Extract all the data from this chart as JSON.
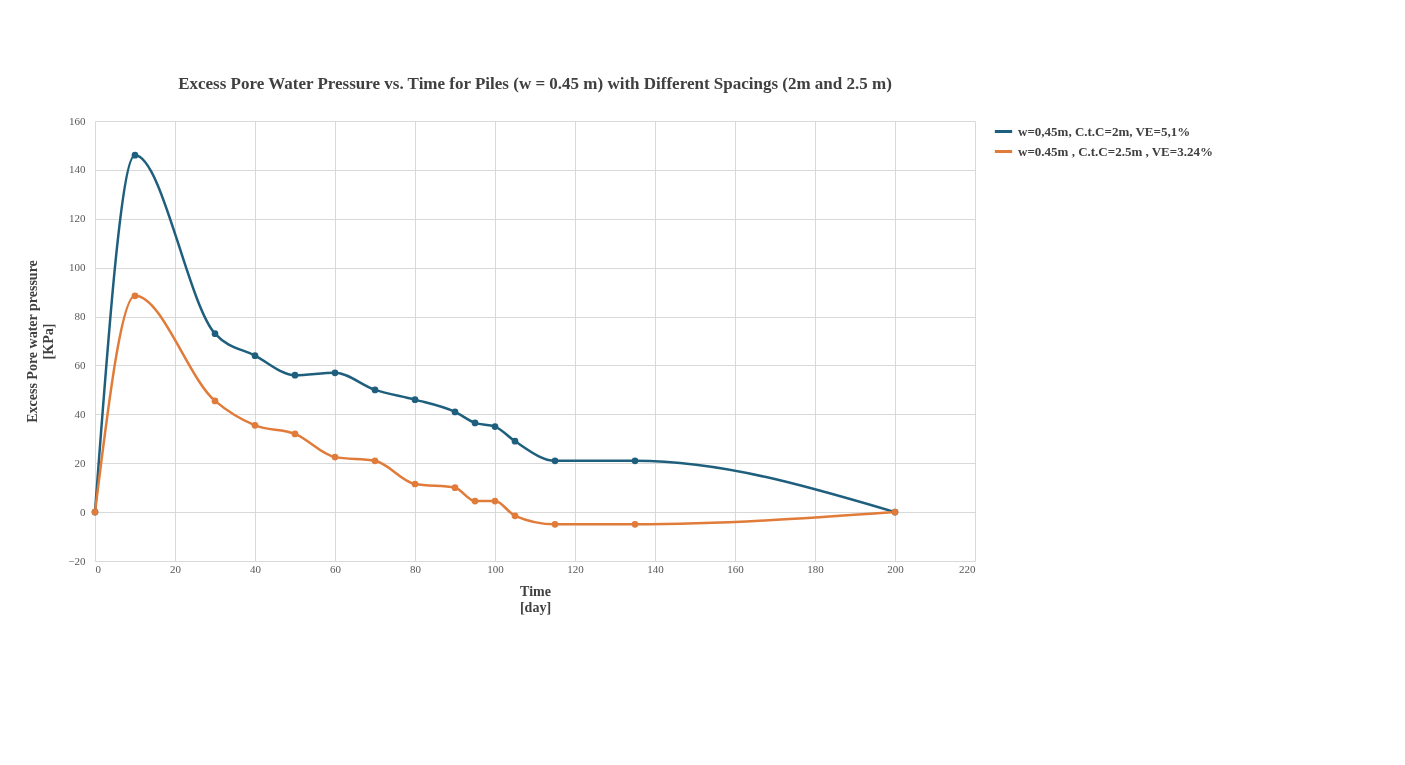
{
  "chart_data": {
    "type": "line",
    "title": "Excess Pore Water Pressure vs. Time for Piles (w = 0.45 m) with Different Spacings (2m and 2.5 m)",
    "xlabel": "Time\n[day]",
    "ylabel": "Excess Pore water pressure\n[KPa]",
    "xlim": [
      0,
      220
    ],
    "xticks": [
      0,
      20,
      40,
      60,
      80,
      100,
      120,
      140,
      160,
      180,
      200,
      220
    ],
    "ylim": [
      -20,
      160
    ],
    "yticks": [
      -20,
      0,
      20,
      40,
      60,
      80,
      100,
      120,
      140,
      160
    ],
    "grid": true,
    "legend": "right",
    "marker": "circle",
    "line_style": "solid",
    "series": [
      {
        "name": "w=0,45m, C.t.C=2m, VE=5,1%",
        "color": "#1f5f7e",
        "x": [
          0,
          10,
          30,
          40,
          50,
          60,
          70,
          80,
          90,
          95,
          100,
          105,
          115,
          135,
          200
        ],
        "values": [
          0,
          146,
          73,
          64,
          56,
          57,
          50,
          46,
          41,
          36.5,
          35,
          29,
          21,
          21,
          0
        ]
      },
      {
        "name": "w=0.45m , C.t.C=2.5m , VE=3.24%",
        "color": "#e07b39",
        "x": [
          0,
          10,
          30,
          40,
          50,
          60,
          70,
          80,
          90,
          95,
          100,
          105,
          115,
          135,
          200
        ],
        "values": [
          0,
          88.5,
          45.5,
          35.5,
          32,
          22.5,
          21,
          11.5,
          10,
          4.5,
          4.5,
          -1.5,
          -5,
          -5,
          0
        ]
      }
    ]
  }
}
